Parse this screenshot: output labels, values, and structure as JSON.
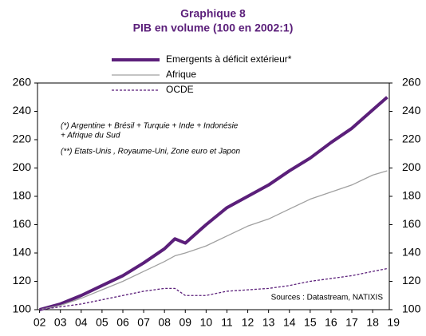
{
  "chart_data": {
    "type": "line",
    "title": "Graphique 8",
    "subtitle": "PIB en volume (100 en 2002:1)",
    "xlim": [
      2001.9,
      2018.8
    ],
    "xticks": [
      {
        "value": 2002,
        "label": "02"
      },
      {
        "value": 2003,
        "label": "03"
      },
      {
        "value": 2004,
        "label": "04"
      },
      {
        "value": 2005,
        "label": "05"
      },
      {
        "value": 2006,
        "label": "06"
      },
      {
        "value": 2007,
        "label": "07"
      },
      {
        "value": 2008,
        "label": "08"
      },
      {
        "value": 2009,
        "label": "09"
      },
      {
        "value": 2010,
        "label": "10"
      },
      {
        "value": 2011,
        "label": "11"
      },
      {
        "value": 2012,
        "label": "12"
      },
      {
        "value": 2013,
        "label": "13"
      },
      {
        "value": 2014,
        "label": "14"
      },
      {
        "value": 2015,
        "label": "15"
      },
      {
        "value": 2016,
        "label": "16"
      },
      {
        "value": 2017,
        "label": "17"
      },
      {
        "value": 2018,
        "label": "18"
      },
      {
        "value": 2019,
        "label": "19"
      }
    ],
    "ylim": [
      100,
      260
    ],
    "yticks": [
      100,
      120,
      140,
      160,
      180,
      200,
      220,
      240,
      260
    ],
    "y2lim": [
      100,
      260
    ],
    "y2ticks": [
      100,
      120,
      140,
      160,
      180,
      200,
      220,
      240,
      260
    ],
    "x": [
      2002,
      2003,
      2004,
      2005,
      2006,
      2007,
      2008,
      2008.5,
      2009,
      2010,
      2011,
      2012,
      2013,
      2014,
      2015,
      2016,
      2017,
      2018,
      2018.7
    ],
    "series": [
      {
        "name": "Emergents à déficit extérieur*",
        "color": "#5b1f7a",
        "style": "thick",
        "values": [
          100,
          104,
          110,
          117,
          124,
          133,
          143,
          150,
          147,
          160,
          172,
          180,
          188,
          198,
          207,
          218,
          228,
          241,
          250
        ]
      },
      {
        "name": "Afrique",
        "color": "#a0a0a0",
        "style": "thin",
        "values": [
          100,
          103,
          108,
          114,
          120,
          127,
          134,
          138,
          140,
          145,
          152,
          159,
          164,
          171,
          178,
          183,
          188,
          195,
          198
        ]
      },
      {
        "name": "OCDE",
        "color": "#5b1f7a",
        "style": "dashed",
        "values": [
          100,
          102,
          104,
          107,
          110,
          113,
          115,
          115,
          110,
          110,
          113,
          114,
          115,
          117,
          120,
          122,
          124,
          127,
          129
        ]
      }
    ],
    "annotations": [
      "(*) Argentine  +  Brésil + Turquie  + Inde + Indonésie",
      "+ Afrique du Sud",
      "(**) Etats-Unis , Royaume-Uni,  Zone euro et Japon",
      "Sources  : Datastream,  NATIXIS"
    ]
  }
}
